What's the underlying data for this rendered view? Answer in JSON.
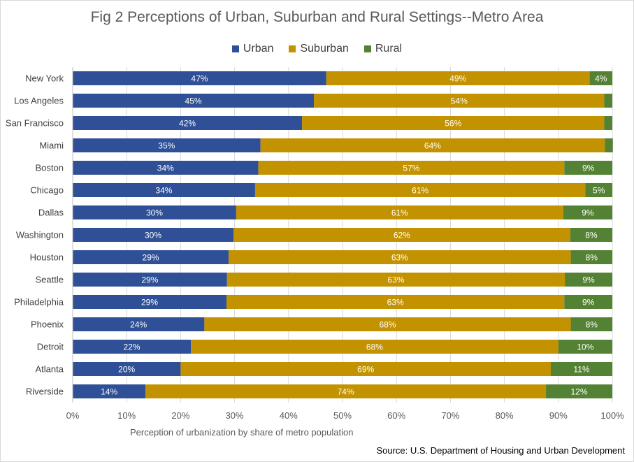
{
  "chart_data": {
    "type": "bar",
    "orientation": "horizontal",
    "stacked": true,
    "title": "Fig 2 Perceptions of Urban, Suburban and Rural Settings--Metro Area",
    "xlabel": "Perception of urbanization by share of metro population",
    "ylabel": "",
    "xlim": [
      0,
      100
    ],
    "x_ticks": [
      "0%",
      "10%",
      "20%",
      "30%",
      "40%",
      "50%",
      "60%",
      "70%",
      "80%",
      "90%",
      "100%"
    ],
    "grid": "vertical",
    "legend_position": "top",
    "categories": [
      "New York",
      "Los Angeles",
      "San Francisco",
      "Miami",
      "Boston",
      "Chicago",
      "Dallas",
      "Washington",
      "Houston",
      "Seattle",
      "Philadelphia",
      "Phoenix",
      "Detroit",
      "Atlanta",
      "Riverside"
    ],
    "series": [
      {
        "name": "Urban",
        "color": "#2f4f96",
        "values": [
          47,
          44.7,
          42.5,
          34.8,
          34.4,
          33.8,
          30.3,
          29.8,
          28.9,
          28.6,
          28.5,
          24.4,
          21.9,
          20,
          13.5
        ],
        "labels": [
          "47%",
          "45%",
          "42%",
          "35%",
          "34%",
          "34%",
          "30%",
          "30%",
          "29%",
          "29%",
          "29%",
          "24%",
          "22%",
          "20%",
          "14%"
        ]
      },
      {
        "name": "Suburban",
        "color": "#c39200",
        "values": [
          48.8,
          53.8,
          56,
          63.8,
          56.7,
          61.2,
          60.6,
          62.4,
          63.4,
          62.6,
          62.6,
          67.9,
          68.1,
          68.6,
          74.2
        ],
        "labels": [
          "49%",
          "54%",
          "56%",
          "64%",
          "57%",
          "61%",
          "61%",
          "62%",
          "63%",
          "63%",
          "63%",
          "68%",
          "68%",
          "69%",
          "74%"
        ]
      },
      {
        "name": "Rural",
        "color": "#548235",
        "values": [
          4.2,
          1.5,
          1.5,
          1.5,
          8.9,
          5,
          9.1,
          7.8,
          7.7,
          8.8,
          8.9,
          7.7,
          10,
          11.4,
          12.3
        ],
        "labels": [
          "4%",
          "",
          "",
          "",
          "9%",
          "5%",
          "9%",
          "8%",
          "8%",
          "9%",
          "9%",
          "8%",
          "10%",
          "11%",
          "12%"
        ]
      }
    ]
  },
  "footer": {
    "source": "Source: U.S. Department of Housing and Urban Development"
  }
}
